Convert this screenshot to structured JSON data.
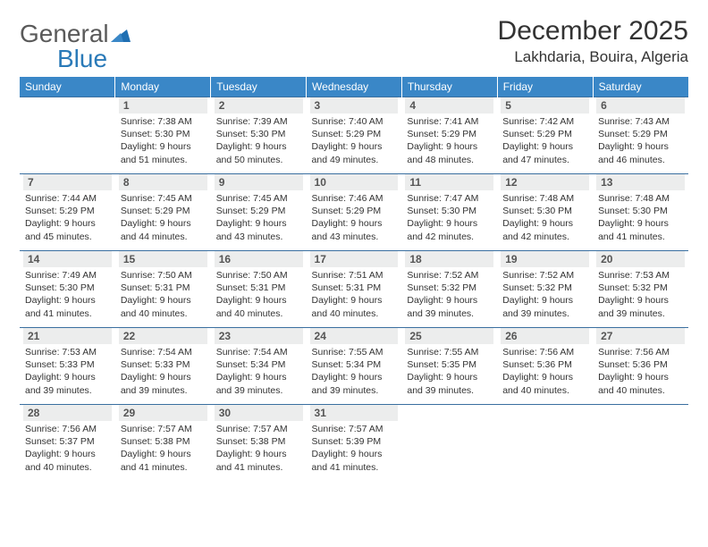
{
  "logo": {
    "word1": "General",
    "word2": "Blue"
  },
  "title": "December 2025",
  "location": "Lakhdaria, Bouira, Algeria",
  "colors": {
    "header_bg": "#3a87c7",
    "header_text": "#ffffff",
    "rule": "#3a6fa0",
    "daynum_bg": "#eceded",
    "daynum_text": "#555555",
    "body_text": "#333333",
    "logo_dark": "#5a5a5a",
    "logo_blue": "#2a7ab8",
    "page_bg": "#ffffff"
  },
  "typography": {
    "title_fontsize": 30,
    "location_fontsize": 17,
    "header_fontsize": 12,
    "daynum_fontsize": 12,
    "info_fontsize": 10.5,
    "logo_fontsize": 28
  },
  "day_names": [
    "Sunday",
    "Monday",
    "Tuesday",
    "Wednesday",
    "Thursday",
    "Friday",
    "Saturday"
  ],
  "weeks": [
    [
      {
        "n": "",
        "sr": "",
        "ss": "",
        "dl": ""
      },
      {
        "n": "1",
        "sr": "Sunrise: 7:38 AM",
        "ss": "Sunset: 5:30 PM",
        "dl": "Daylight: 9 hours and 51 minutes."
      },
      {
        "n": "2",
        "sr": "Sunrise: 7:39 AM",
        "ss": "Sunset: 5:30 PM",
        "dl": "Daylight: 9 hours and 50 minutes."
      },
      {
        "n": "3",
        "sr": "Sunrise: 7:40 AM",
        "ss": "Sunset: 5:29 PM",
        "dl": "Daylight: 9 hours and 49 minutes."
      },
      {
        "n": "4",
        "sr": "Sunrise: 7:41 AM",
        "ss": "Sunset: 5:29 PM",
        "dl": "Daylight: 9 hours and 48 minutes."
      },
      {
        "n": "5",
        "sr": "Sunrise: 7:42 AM",
        "ss": "Sunset: 5:29 PM",
        "dl": "Daylight: 9 hours and 47 minutes."
      },
      {
        "n": "6",
        "sr": "Sunrise: 7:43 AM",
        "ss": "Sunset: 5:29 PM",
        "dl": "Daylight: 9 hours and 46 minutes."
      }
    ],
    [
      {
        "n": "7",
        "sr": "Sunrise: 7:44 AM",
        "ss": "Sunset: 5:29 PM",
        "dl": "Daylight: 9 hours and 45 minutes."
      },
      {
        "n": "8",
        "sr": "Sunrise: 7:45 AM",
        "ss": "Sunset: 5:29 PM",
        "dl": "Daylight: 9 hours and 44 minutes."
      },
      {
        "n": "9",
        "sr": "Sunrise: 7:45 AM",
        "ss": "Sunset: 5:29 PM",
        "dl": "Daylight: 9 hours and 43 minutes."
      },
      {
        "n": "10",
        "sr": "Sunrise: 7:46 AM",
        "ss": "Sunset: 5:29 PM",
        "dl": "Daylight: 9 hours and 43 minutes."
      },
      {
        "n": "11",
        "sr": "Sunrise: 7:47 AM",
        "ss": "Sunset: 5:30 PM",
        "dl": "Daylight: 9 hours and 42 minutes."
      },
      {
        "n": "12",
        "sr": "Sunrise: 7:48 AM",
        "ss": "Sunset: 5:30 PM",
        "dl": "Daylight: 9 hours and 42 minutes."
      },
      {
        "n": "13",
        "sr": "Sunrise: 7:48 AM",
        "ss": "Sunset: 5:30 PM",
        "dl": "Daylight: 9 hours and 41 minutes."
      }
    ],
    [
      {
        "n": "14",
        "sr": "Sunrise: 7:49 AM",
        "ss": "Sunset: 5:30 PM",
        "dl": "Daylight: 9 hours and 41 minutes."
      },
      {
        "n": "15",
        "sr": "Sunrise: 7:50 AM",
        "ss": "Sunset: 5:31 PM",
        "dl": "Daylight: 9 hours and 40 minutes."
      },
      {
        "n": "16",
        "sr": "Sunrise: 7:50 AM",
        "ss": "Sunset: 5:31 PM",
        "dl": "Daylight: 9 hours and 40 minutes."
      },
      {
        "n": "17",
        "sr": "Sunrise: 7:51 AM",
        "ss": "Sunset: 5:31 PM",
        "dl": "Daylight: 9 hours and 40 minutes."
      },
      {
        "n": "18",
        "sr": "Sunrise: 7:52 AM",
        "ss": "Sunset: 5:32 PM",
        "dl": "Daylight: 9 hours and 39 minutes."
      },
      {
        "n": "19",
        "sr": "Sunrise: 7:52 AM",
        "ss": "Sunset: 5:32 PM",
        "dl": "Daylight: 9 hours and 39 minutes."
      },
      {
        "n": "20",
        "sr": "Sunrise: 7:53 AM",
        "ss": "Sunset: 5:32 PM",
        "dl": "Daylight: 9 hours and 39 minutes."
      }
    ],
    [
      {
        "n": "21",
        "sr": "Sunrise: 7:53 AM",
        "ss": "Sunset: 5:33 PM",
        "dl": "Daylight: 9 hours and 39 minutes."
      },
      {
        "n": "22",
        "sr": "Sunrise: 7:54 AM",
        "ss": "Sunset: 5:33 PM",
        "dl": "Daylight: 9 hours and 39 minutes."
      },
      {
        "n": "23",
        "sr": "Sunrise: 7:54 AM",
        "ss": "Sunset: 5:34 PM",
        "dl": "Daylight: 9 hours and 39 minutes."
      },
      {
        "n": "24",
        "sr": "Sunrise: 7:55 AM",
        "ss": "Sunset: 5:34 PM",
        "dl": "Daylight: 9 hours and 39 minutes."
      },
      {
        "n": "25",
        "sr": "Sunrise: 7:55 AM",
        "ss": "Sunset: 5:35 PM",
        "dl": "Daylight: 9 hours and 39 minutes."
      },
      {
        "n": "26",
        "sr": "Sunrise: 7:56 AM",
        "ss": "Sunset: 5:36 PM",
        "dl": "Daylight: 9 hours and 40 minutes."
      },
      {
        "n": "27",
        "sr": "Sunrise: 7:56 AM",
        "ss": "Sunset: 5:36 PM",
        "dl": "Daylight: 9 hours and 40 minutes."
      }
    ],
    [
      {
        "n": "28",
        "sr": "Sunrise: 7:56 AM",
        "ss": "Sunset: 5:37 PM",
        "dl": "Daylight: 9 hours and 40 minutes."
      },
      {
        "n": "29",
        "sr": "Sunrise: 7:57 AM",
        "ss": "Sunset: 5:38 PM",
        "dl": "Daylight: 9 hours and 41 minutes."
      },
      {
        "n": "30",
        "sr": "Sunrise: 7:57 AM",
        "ss": "Sunset: 5:38 PM",
        "dl": "Daylight: 9 hours and 41 minutes."
      },
      {
        "n": "31",
        "sr": "Sunrise: 7:57 AM",
        "ss": "Sunset: 5:39 PM",
        "dl": "Daylight: 9 hours and 41 minutes."
      },
      {
        "n": "",
        "sr": "",
        "ss": "",
        "dl": ""
      },
      {
        "n": "",
        "sr": "",
        "ss": "",
        "dl": ""
      },
      {
        "n": "",
        "sr": "",
        "ss": "",
        "dl": ""
      }
    ]
  ]
}
